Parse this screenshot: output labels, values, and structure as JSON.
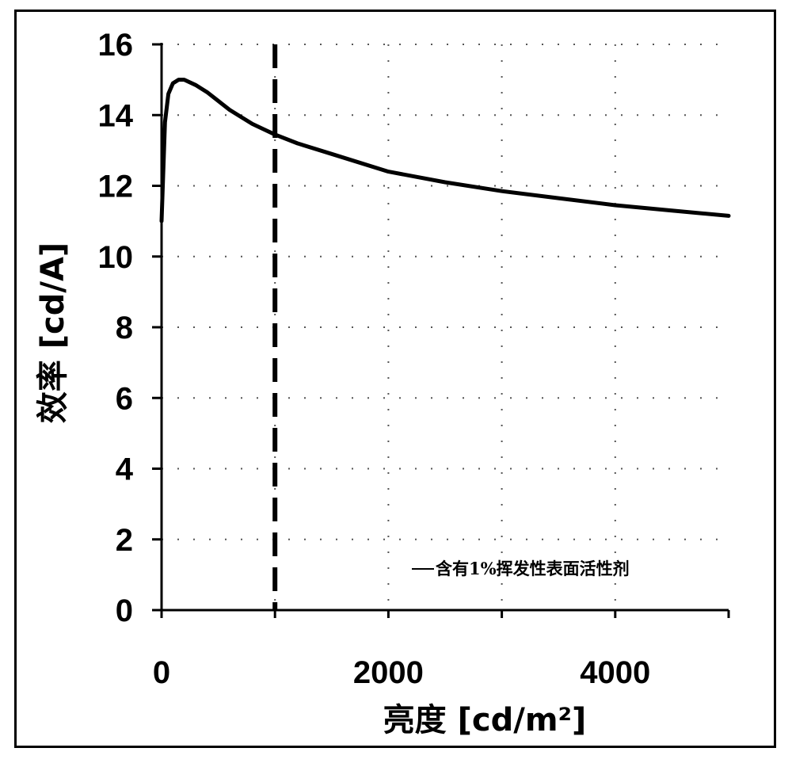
{
  "chart_data": {
    "type": "line",
    "title": "",
    "xlabel": "亮度  [cd/m²]",
    "ylabel": "效率 [cd/A]",
    "xlim": [
      0,
      5000
    ],
    "ylim": [
      0,
      16
    ],
    "x_ticks": [
      0,
      2000,
      4000
    ],
    "y_ticks": [
      0,
      2,
      4,
      6,
      8,
      10,
      12,
      14,
      16
    ],
    "grid": "dotted",
    "legend_position": "bottom-right",
    "reference_line": {
      "orientation": "vertical",
      "x": 1000,
      "style": "dashed"
    },
    "series": [
      {
        "name": "含有1%挥发性表面活性剂",
        "color": "#000000",
        "x": [
          0,
          30,
          60,
          100,
          150,
          200,
          300,
          400,
          500,
          600,
          700,
          800,
          900,
          1000,
          1200,
          1500,
          2000,
          2500,
          3000,
          3500,
          4000,
          4500,
          5000
        ],
        "y": [
          11.0,
          13.8,
          14.6,
          14.9,
          15.0,
          15.0,
          14.85,
          14.65,
          14.4,
          14.15,
          13.95,
          13.75,
          13.6,
          13.45,
          13.2,
          12.9,
          12.4,
          12.1,
          11.85,
          11.65,
          11.45,
          11.3,
          11.15
        ]
      }
    ]
  }
}
